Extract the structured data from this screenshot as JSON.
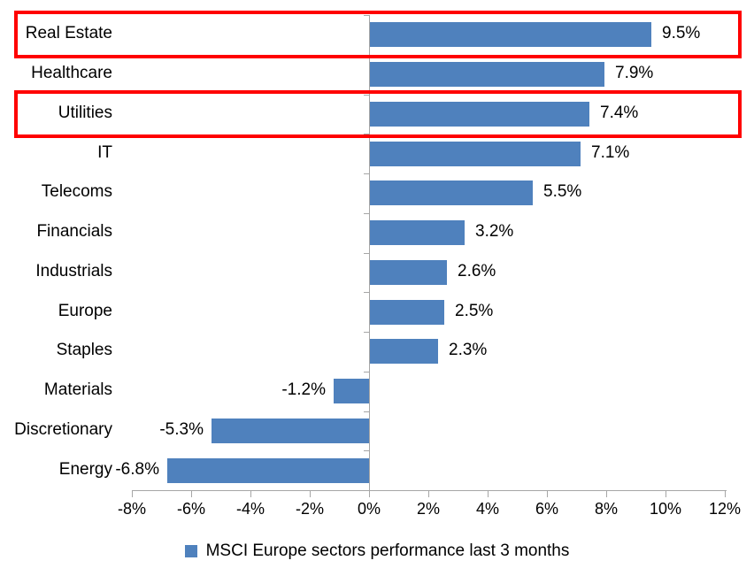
{
  "chart_data": {
    "type": "bar",
    "orientation": "horizontal",
    "title": "",
    "categories": [
      "Real Estate",
      "Healthcare",
      "Utilities",
      "IT",
      "Telecoms",
      "Financials",
      "Industrials",
      "Europe",
      "Staples",
      "Materials",
      "Discretionary",
      "Energy"
    ],
    "values": [
      9.5,
      7.9,
      7.4,
      7.1,
      5.5,
      3.2,
      2.6,
      2.5,
      2.3,
      -1.2,
      -5.3,
      -6.8
    ],
    "value_labels": [
      "9.5%",
      "7.9%",
      "7.4%",
      "7.1%",
      "5.5%",
      "3.2%",
      "2.6%",
      "2.5%",
      "2.3%",
      "-1.2%",
      "-5.3%",
      "-6.8%"
    ],
    "x_axis": {
      "min": -8,
      "max": 12,
      "tick_values": [
        -8,
        -6,
        -4,
        -2,
        0,
        2,
        4,
        6,
        8,
        10,
        12
      ],
      "tick_labels": [
        "-8%",
        "-6%",
        "-4%",
        "-2%",
        "0%",
        "2%",
        "4%",
        "6%",
        "8%",
        "10%",
        "12%"
      ]
    },
    "legend": {
      "label": "MSCI Europe sectors performance last 3 months",
      "marker": "square",
      "position": "bottom"
    },
    "highlighted_rows": [
      0,
      2
    ],
    "grid": false,
    "colors": {
      "bar": "#4f81bd",
      "highlight_box": "#ff0000",
      "axis": "#a6a6a6",
      "text": "#000000",
      "background": "#ffffff"
    }
  }
}
